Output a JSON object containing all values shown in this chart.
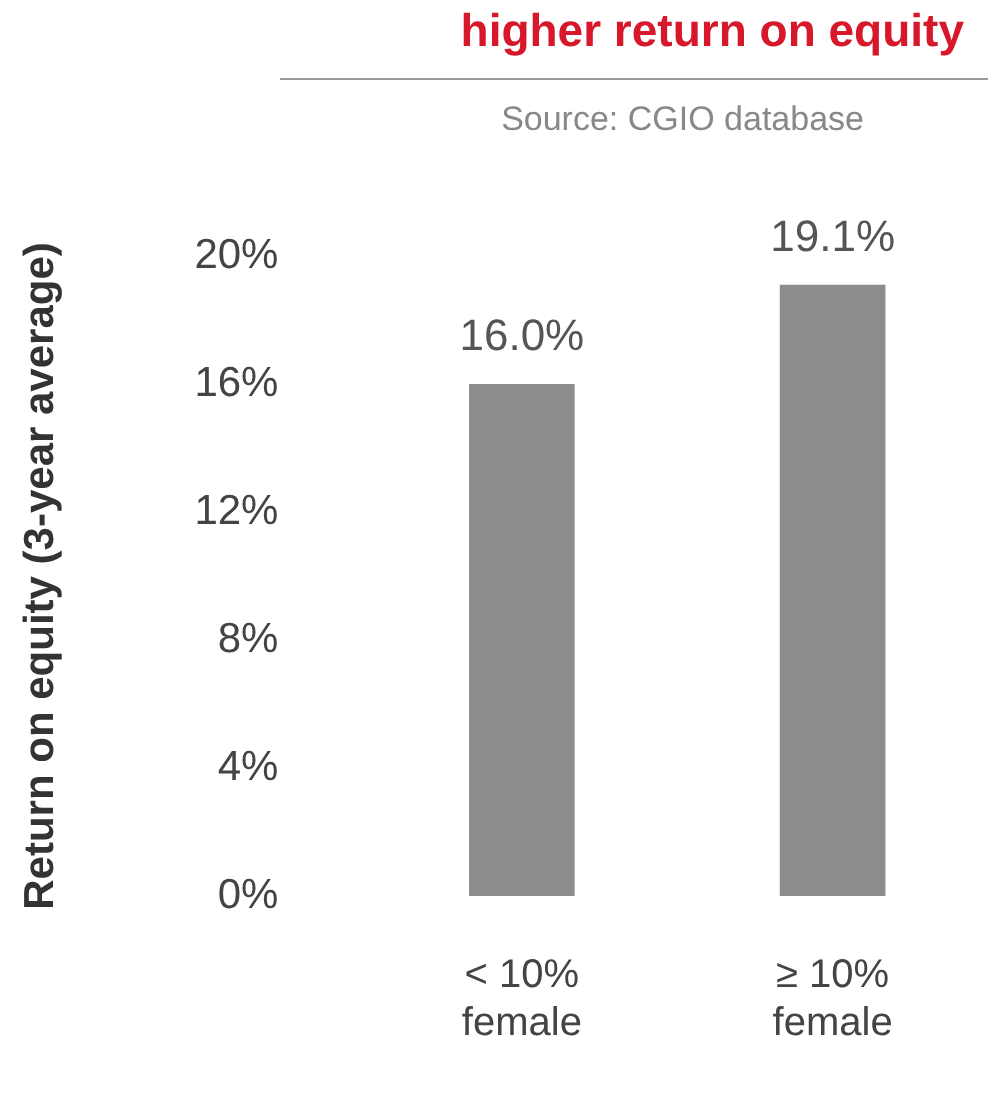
{
  "chart_data": {
    "type": "bar",
    "title": "higher return on equity",
    "subtitle": "Source: CGIO database",
    "ylabel": "Return on equity (3-year average)",
    "categories": [
      "< 10% female",
      "≥ 10% female"
    ],
    "values": [
      16.0,
      19.1
    ],
    "color": "#8c8c8c",
    "value_labels": [
      "16.0%",
      "19.1%"
    ],
    "ylim": [
      0,
      20
    ],
    "yticks": [
      {
        "value": 0,
        "label": "0%"
      },
      {
        "value": 4,
        "label": "4%"
      },
      {
        "value": 8,
        "label": "8%"
      },
      {
        "value": 12,
        "label": "12%"
      },
      {
        "value": 16,
        "label": "16%"
      },
      {
        "value": 20,
        "label": "20%"
      }
    ],
    "grid": false,
    "legend": false
  }
}
